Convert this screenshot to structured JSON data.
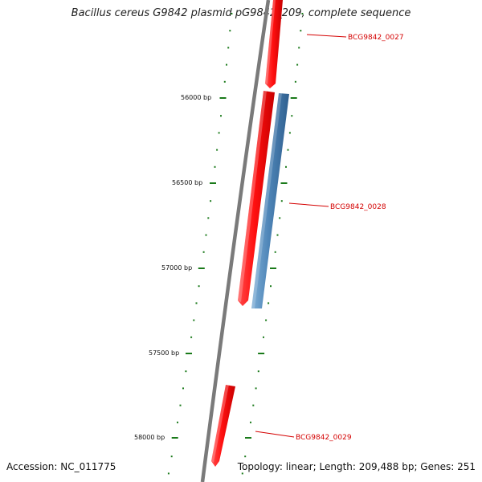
{
  "title": "Bacillus cereus G9842 plasmid pG9842_209, complete sequence",
  "footer": {
    "accession_label": "Accession:",
    "accession": "NC_011775",
    "topology_label": "Topology:",
    "topology": "linear",
    "length_label": "Length:",
    "length": "209,488 bp",
    "genes_label": "Genes:",
    "genes": "251"
  },
  "colors": {
    "backbone": "#7a7a7a",
    "forward_gene": "#ff1a1a",
    "reverse_gene": "#4f86b8",
    "tick": "#1a7a1a",
    "label": "#d40000",
    "ruler_text": "#111111"
  },
  "ruler": {
    "unit": "bp",
    "labels": [
      {
        "bp": 56000,
        "text": "56000 bp"
      },
      {
        "bp": 56500,
        "text": "56500 bp"
      },
      {
        "bp": 57000,
        "text": "57000 bp"
      },
      {
        "bp": 57500,
        "text": "57500 bp"
      },
      {
        "bp": 58000,
        "text": "58000 bp"
      }
    ]
  },
  "genes": [
    {
      "id": "BCG9842_0027",
      "label": "BCG9842_0027",
      "strand": "forward"
    },
    {
      "id": "BCG9842_0028a",
      "label": "",
      "strand": "forward"
    },
    {
      "id": "BCG9842_0028",
      "label": "BCG9842_0028",
      "strand": "reverse"
    },
    {
      "id": "BCG9842_0029",
      "label": "BCG9842_0029",
      "strand": "forward"
    }
  ]
}
